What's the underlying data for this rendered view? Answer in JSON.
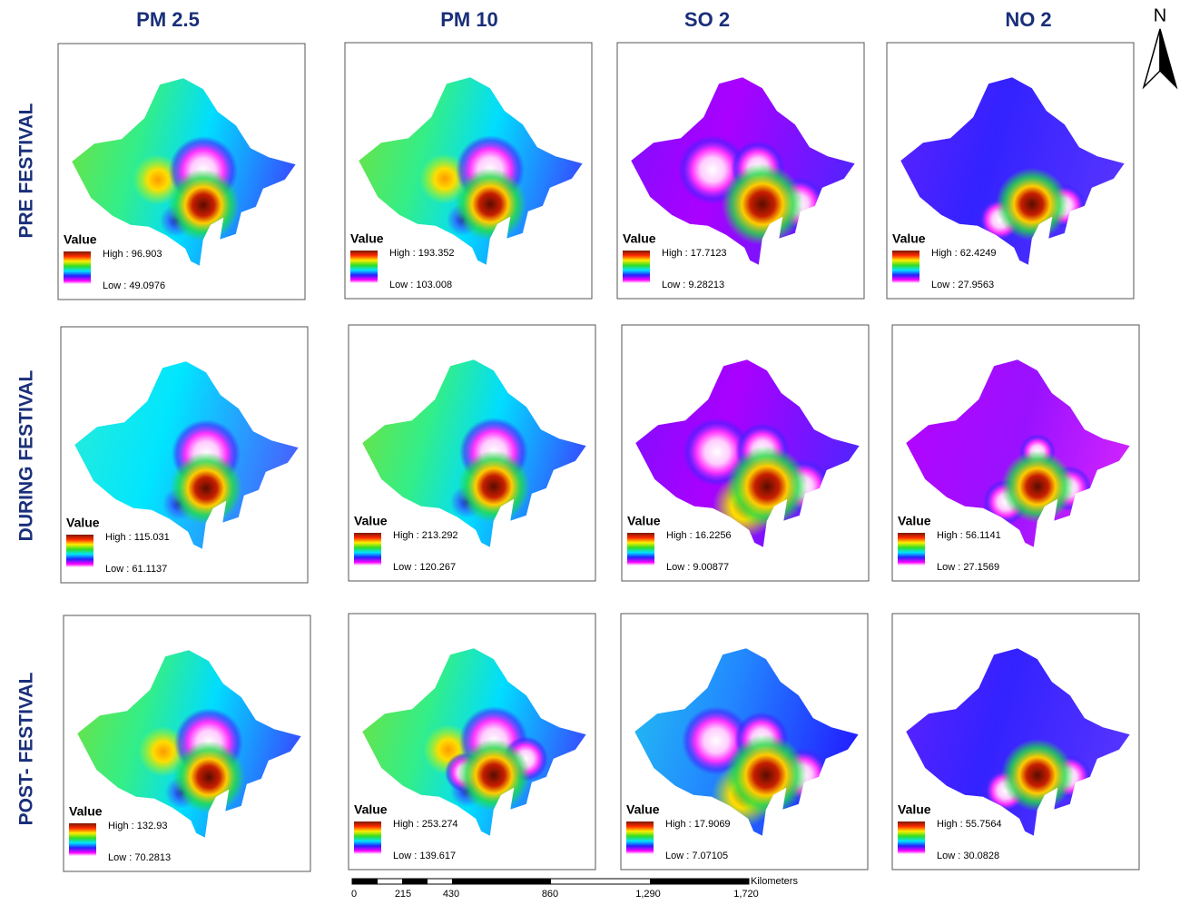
{
  "column_titles": [
    "PM 2.5",
    "PM 10",
    "SO 2",
    "NO 2"
  ],
  "row_titles": [
    "PRE FESTIVAL",
    "DURING FESTIVAL",
    "POST- FESTIVAL"
  ],
  "north": "N",
  "panels": [
    [
      {
        "legend": "Value",
        "high": "High : 96.903",
        "low": "Low : 49.0976"
      },
      {
        "legend": "Value",
        "high": "High : 193.352",
        "low": "Low : 103.008"
      },
      {
        "legend": "Value",
        "high": "High : 17.7123",
        "low": "Low : 9.28213"
      },
      {
        "legend": "Value",
        "high": "High : 62.4249",
        "low": "Low : 27.9563"
      }
    ],
    [
      {
        "legend": "Value",
        "high": "High : 115.031",
        "low": "Low : 61.1137"
      },
      {
        "legend": "Value",
        "high": "High : 213.292",
        "low": "Low : 120.267"
      },
      {
        "legend": "Value",
        "high": "High : 16.2256",
        "low": "Low : 9.00877"
      },
      {
        "legend": "Value",
        "high": "High : 56.1141",
        "low": "Low : 27.1569"
      }
    ],
    [
      {
        "legend": "Value",
        "high": "High : 132.93",
        "low": "Low : 70.2813"
      },
      {
        "legend": "Value",
        "high": "High : 253.274",
        "low": "Low : 139.617"
      },
      {
        "legend": "Value",
        "high": "High : 17.9069",
        "low": "Low : 7.07105"
      },
      {
        "legend": "Value",
        "high": "High : 55.7564",
        "low": "Low : 30.0828"
      }
    ]
  ],
  "scale_bar": {
    "unit": "Kilometers",
    "labels": [
      "0",
      "215",
      "430",
      "860",
      "1,290",
      "1,720"
    ]
  }
}
